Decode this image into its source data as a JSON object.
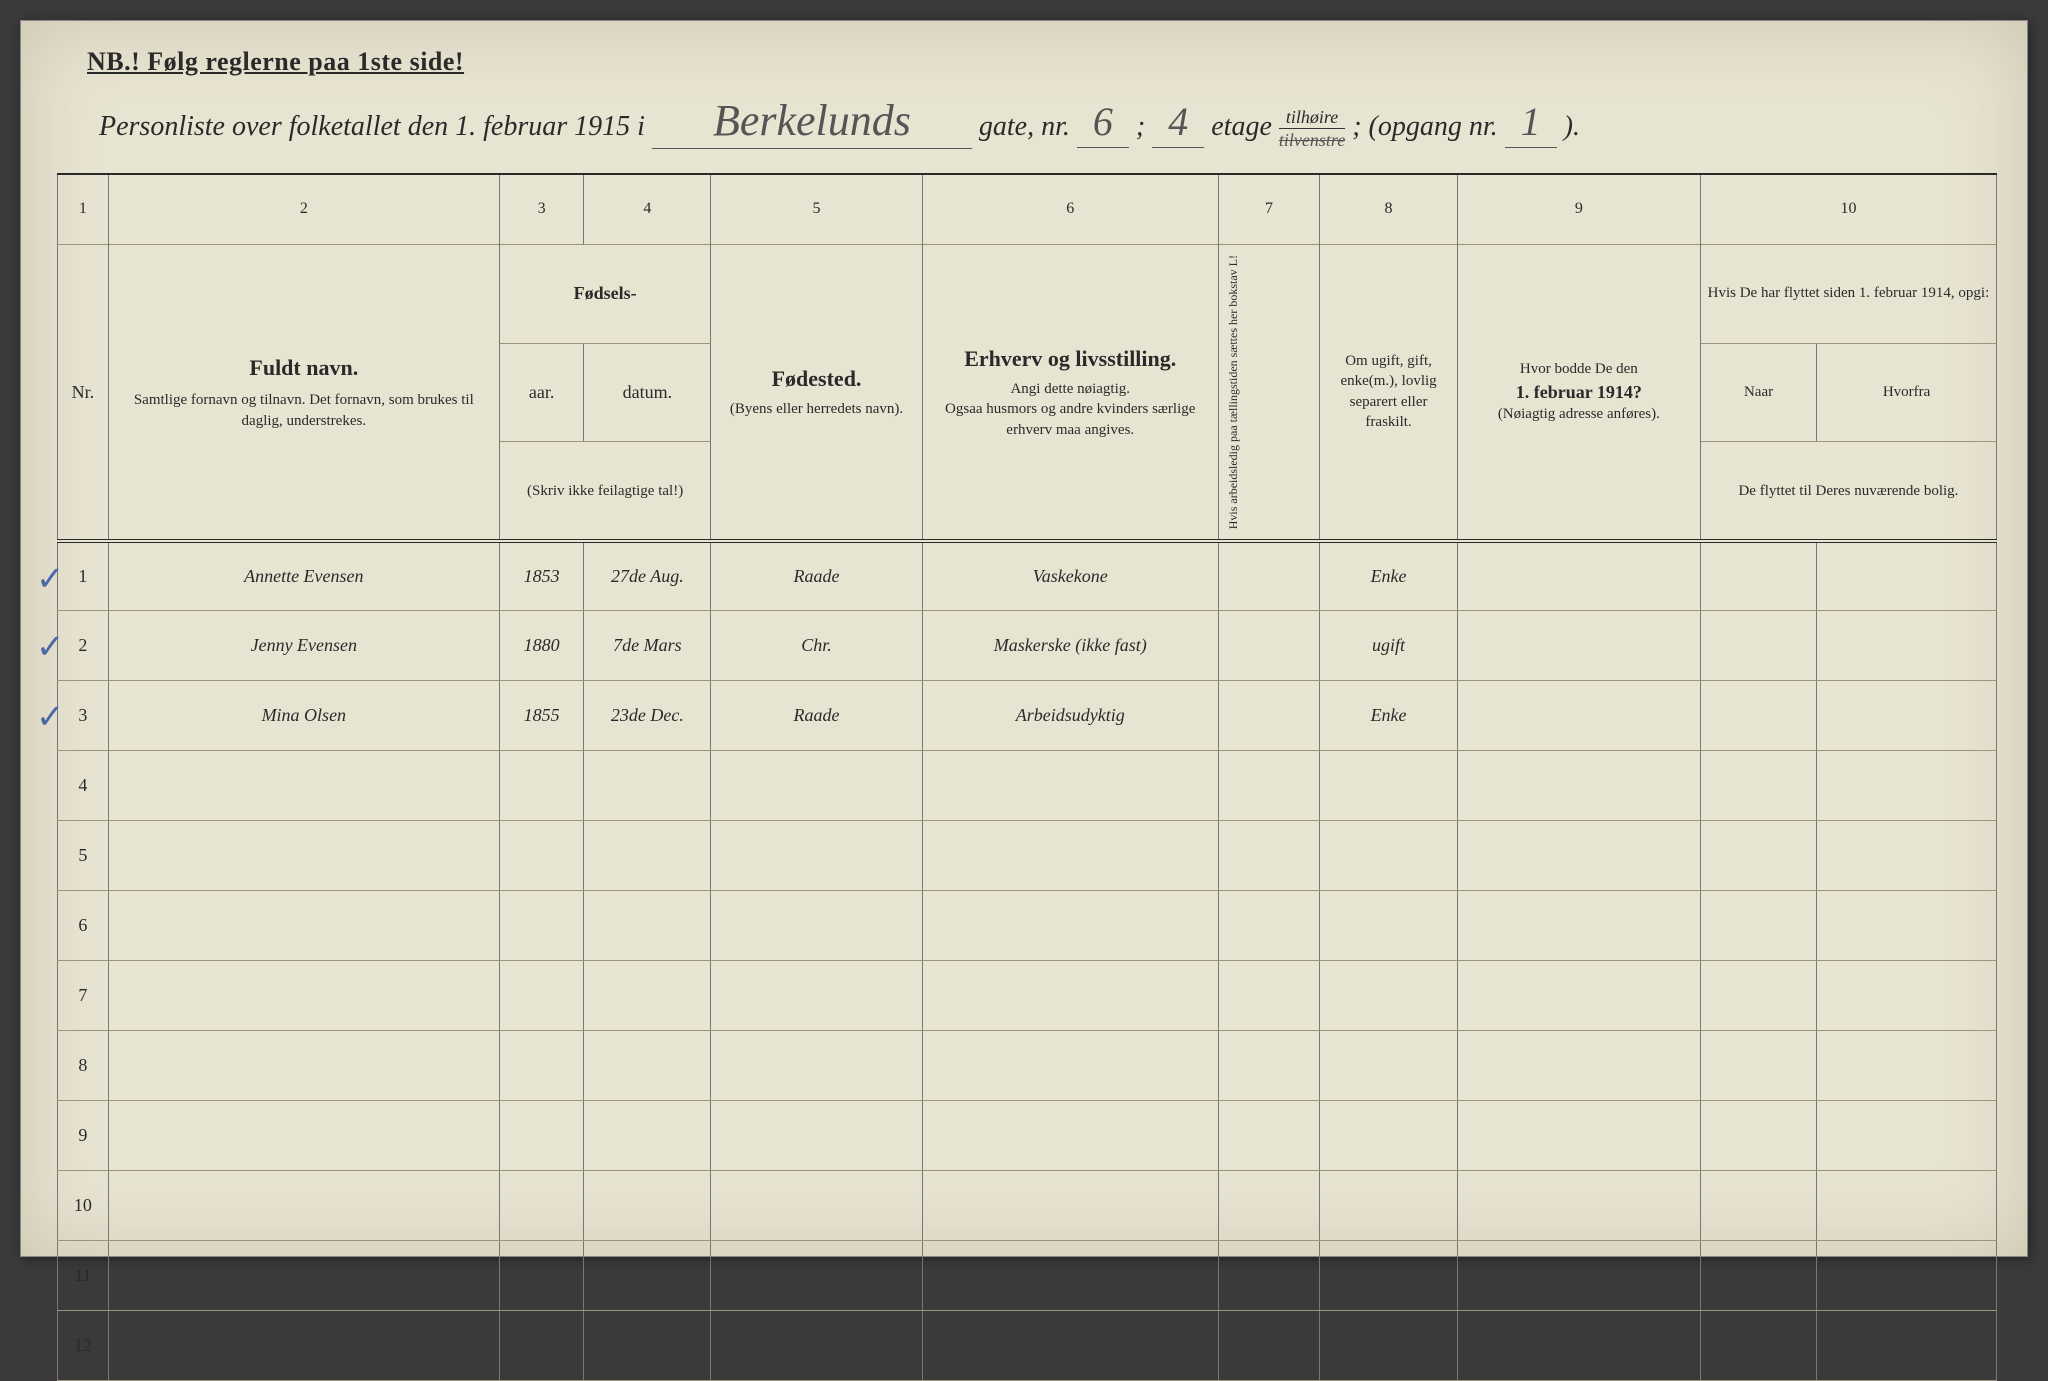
{
  "page": {
    "background_color": "#3a3a3a",
    "paper_color": "#e8e4d2",
    "ink_color": "#2a2a2a",
    "handwriting_color": "#555555",
    "rule_line_color": "#9a947e",
    "check_color": "#4a6aa8"
  },
  "nb_line": "NB.!  Følg reglerne paa 1ste side!",
  "header": {
    "prefix": "Personliste over folketallet den 1. februar 1915 i",
    "street": "Berkelunds",
    "gate_label": "gate, nr.",
    "street_nr": "6",
    "sep1": ";",
    "floor": "4",
    "etage_label": "etage",
    "side_top": "tilhøire",
    "side_bottom": "tilvenstre",
    "sep2": "; (opgang nr.",
    "opgang": "1",
    "close": ")."
  },
  "colnums": [
    "1",
    "2",
    "3",
    "4",
    "5",
    "6",
    "7",
    "8",
    "9",
    "10"
  ],
  "columns": {
    "nr": "Nr.",
    "name_title": "Fuldt navn.",
    "name_sub": "Samtlige fornavn og tilnavn.  Det fornavn, som brukes til daglig, understrekes.",
    "birth_title": "Fødsels-",
    "birth_year": "aar.",
    "birth_date": "datum.",
    "birth_note": "(Skriv ikke feilagtige tal!)",
    "birthplace_title": "Fødested.",
    "birthplace_sub": "(Byens eller herredets navn).",
    "occ_title": "Erhverv og livsstilling.",
    "occ_sub1": "Angi dette nøiagtig.",
    "occ_sub2": "Ogsaa husmors og andre kvinders særlige erhverv maa angives.",
    "col7": "Hvis arbeidsledig paa tællingstiden sættes her bokstav L!",
    "marital": "Om ugift, gift, enke(m.), lovlig separert eller fraskilt.",
    "prev_title": "Hvor bodde De den",
    "prev_date": "1. februar 1914?",
    "prev_sub": "(Nøiagtig adresse anføres).",
    "moved_title": "Hvis De har flyttet siden 1. februar 1914, opgi:",
    "moved_when": "Naar",
    "moved_from": "Hvorfra",
    "moved_note": "De flyttet til Deres nuværende bolig."
  },
  "rows": [
    {
      "nr": "1",
      "check": true,
      "name": "Annette Evensen",
      "year": "1853",
      "date": "27de Aug.",
      "birthplace": "Raade",
      "occupation": "Vaskekone",
      "l": "",
      "marital": "Enke",
      "prev": "",
      "when": "",
      "from": ""
    },
    {
      "nr": "2",
      "check": true,
      "name": "Jenny Evensen",
      "year": "1880",
      "date": "7de Mars",
      "birthplace": "Chr.",
      "occupation": "Maskerske (ikke fast)",
      "l": "",
      "marital": "ugift",
      "prev": "",
      "when": "",
      "from": ""
    },
    {
      "nr": "3",
      "check": true,
      "name": "Mina Olsen",
      "year": "1855",
      "date": "23de Dec.",
      "birthplace": "Raade",
      "occupation": "Arbeidsudyktig",
      "l": "",
      "marital": "Enke",
      "prev": "",
      "when": "",
      "from": ""
    },
    {
      "nr": "4",
      "check": false,
      "name": "",
      "year": "",
      "date": "",
      "birthplace": "",
      "occupation": "",
      "l": "",
      "marital": "",
      "prev": "",
      "when": "",
      "from": ""
    },
    {
      "nr": "5",
      "check": false,
      "name": "",
      "year": "",
      "date": "",
      "birthplace": "",
      "occupation": "",
      "l": "",
      "marital": "",
      "prev": "",
      "when": "",
      "from": ""
    },
    {
      "nr": "6",
      "check": false,
      "name": "",
      "year": "",
      "date": "",
      "birthplace": "",
      "occupation": "",
      "l": "",
      "marital": "",
      "prev": "",
      "when": "",
      "from": ""
    },
    {
      "nr": "7",
      "check": false,
      "name": "",
      "year": "",
      "date": "",
      "birthplace": "",
      "occupation": "",
      "l": "",
      "marital": "",
      "prev": "",
      "when": "",
      "from": ""
    },
    {
      "nr": "8",
      "check": false,
      "name": "",
      "year": "",
      "date": "",
      "birthplace": "",
      "occupation": "",
      "l": "",
      "marital": "",
      "prev": "",
      "when": "",
      "from": ""
    },
    {
      "nr": "9",
      "check": false,
      "name": "",
      "year": "",
      "date": "",
      "birthplace": "",
      "occupation": "",
      "l": "",
      "marital": "",
      "prev": "",
      "when": "",
      "from": ""
    },
    {
      "nr": "10",
      "check": false,
      "name": "",
      "year": "",
      "date": "",
      "birthplace": "",
      "occupation": "",
      "l": "",
      "marital": "",
      "prev": "",
      "when": "",
      "from": ""
    },
    {
      "nr": "11",
      "check": false,
      "name": "",
      "year": "",
      "date": "",
      "birthplace": "",
      "occupation": "",
      "l": "",
      "marital": "",
      "prev": "",
      "when": "",
      "from": ""
    },
    {
      "nr": "12",
      "check": false,
      "name": "",
      "year": "",
      "date": "",
      "birthplace": "",
      "occupation": "",
      "l": "",
      "marital": "",
      "prev": "",
      "when": "",
      "from": ""
    }
  ]
}
